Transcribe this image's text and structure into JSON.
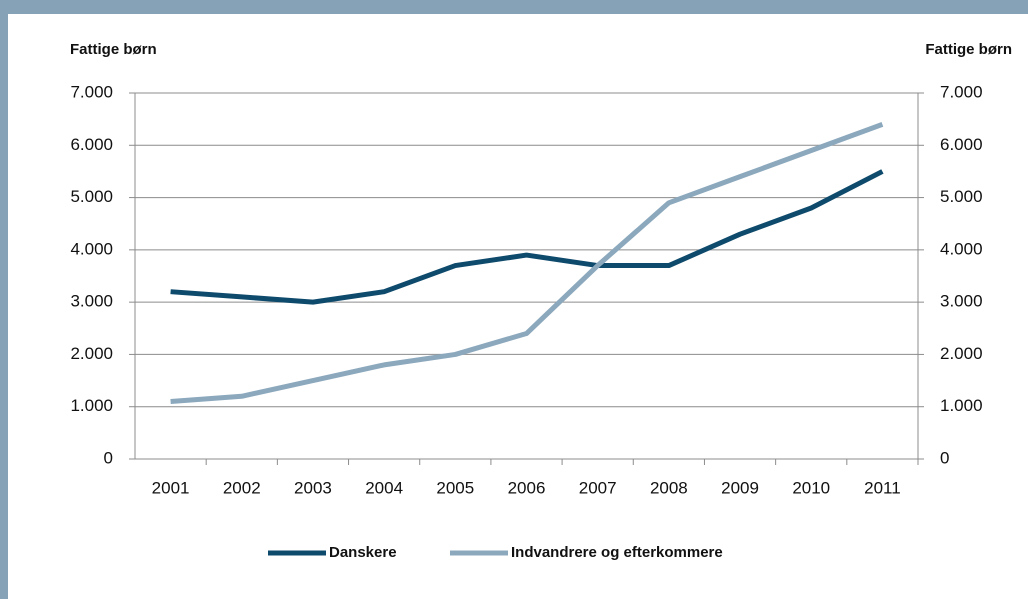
{
  "chart_data": {
    "type": "line",
    "y_label": "Fattige børn",
    "y2_label": "Fattige børn",
    "categories": [
      "2001",
      "2002",
      "2003",
      "2004",
      "2005",
      "2006",
      "2007",
      "2008",
      "2009",
      "2010",
      "2011"
    ],
    "series": [
      {
        "name": "Danskere",
        "color": "#0e4a6c",
        "values": [
          3200,
          3100,
          3000,
          3200,
          3700,
          3900,
          3700,
          3700,
          4300,
          4800,
          5500
        ]
      },
      {
        "name": "Indvandrere og efterkommere",
        "color": "#8ba8bd",
        "values": [
          1100,
          1200,
          1500,
          1800,
          2000,
          2400,
          3700,
          4900,
          5400,
          5900,
          6400
        ]
      }
    ],
    "ylim": [
      0,
      7000
    ],
    "yticks": [
      0,
      {
        "value": 1000,
        "label": "1.000"
      },
      {
        "value": 2000,
        "label": "2.000"
      },
      {
        "value": 3000,
        "label": "3.000"
      },
      {
        "value": 4000,
        "label": "4.000"
      },
      {
        "value": 5000,
        "label": "5.000"
      },
      {
        "value": 6000,
        "label": "6.000"
      },
      {
        "value": 7000,
        "label": "7.000"
      }
    ],
    "y2lim": [
      0,
      7000
    ],
    "y2ticks": [
      0,
      {
        "value": 1000,
        "label": "1.000"
      },
      {
        "value": 2000,
        "label": "2.000"
      },
      {
        "value": 3000,
        "label": "3.000"
      },
      {
        "value": 4000,
        "label": "4.000"
      },
      {
        "value": 5000,
        "label": "5.000"
      },
      {
        "value": 6000,
        "label": "6.000"
      },
      {
        "value": 7000,
        "label": "7.000"
      }
    ],
    "grid": true,
    "legend": "bottom"
  }
}
